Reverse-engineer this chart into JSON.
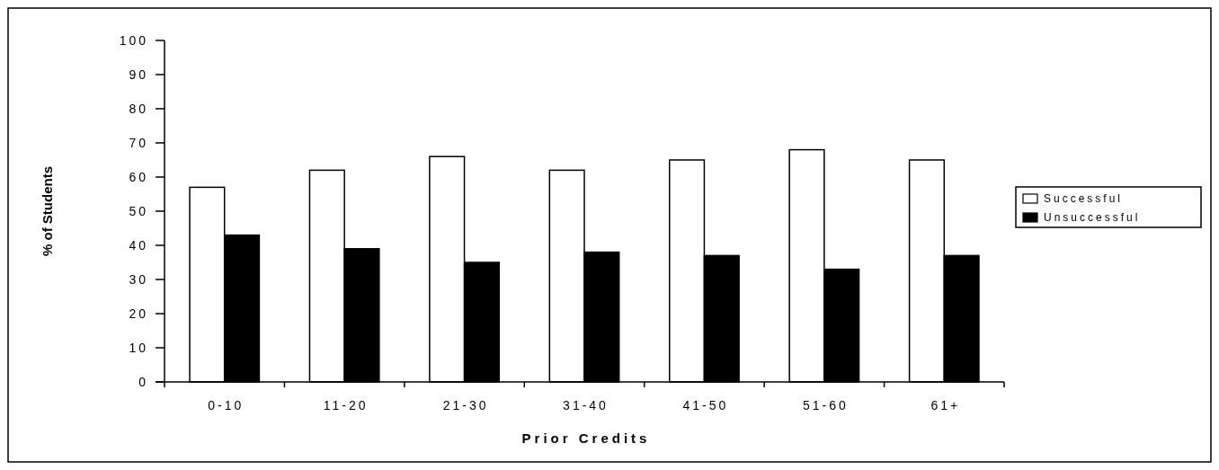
{
  "chart_data": {
    "type": "bar",
    "xlabel": "Prior Credits",
    "ylabel": "% of Students",
    "categories": [
      "0-10",
      "11-20",
      "21-30",
      "31-40",
      "41-50",
      "51-60",
      "61+"
    ],
    "series": [
      {
        "name": "Successful",
        "color": "#ffffff",
        "values": [
          57,
          62,
          66,
          62,
          65,
          68,
          65
        ]
      },
      {
        "name": "Unsuccessful",
        "color": "#000000",
        "values": [
          43,
          39,
          35,
          38,
          37,
          33,
          37
        ]
      }
    ],
    "ylim": [
      0,
      100
    ],
    "yticks": [
      0,
      10,
      20,
      30,
      40,
      50,
      60,
      70,
      80,
      90,
      100
    ],
    "grid": false,
    "legend": "right"
  }
}
